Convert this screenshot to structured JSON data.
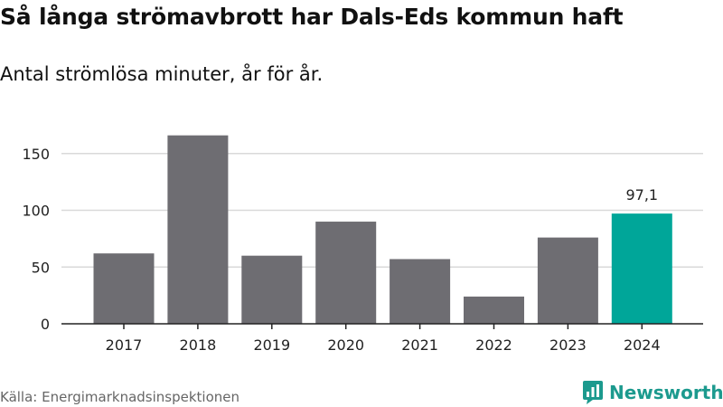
{
  "header": {
    "title": "Så långa strömavbrott har Dals-Eds kommun haft",
    "subtitle": "Antal strömlösa minuter, år för år."
  },
  "footer": {
    "source": "Källa: Energimarknadsinspektionen",
    "brand": "Newsworthy"
  },
  "colors": {
    "bar_default": "#6e6d72",
    "bar_highlight": "#00a699",
    "grid": "#d9d9d9",
    "axis": "#222222",
    "brand": "#1c9a8e"
  },
  "chart_data": {
    "type": "bar",
    "title": "Så långa strömavbrott har Dals-Eds kommun haft",
    "subtitle": "Antal strömlösa minuter, år för år.",
    "xlabel": "",
    "ylabel": "",
    "categories": [
      "2017",
      "2018",
      "2019",
      "2020",
      "2021",
      "2022",
      "2023",
      "2024"
    ],
    "values": [
      62,
      166,
      60,
      90,
      57,
      24,
      76,
      97.1
    ],
    "highlight_index": 7,
    "data_labels": [
      {
        "index": 7,
        "text": "97,1"
      }
    ],
    "yticks": [
      0,
      50,
      100,
      150
    ],
    "ylim": [
      0,
      175
    ],
    "grid": true,
    "legend": "none"
  }
}
